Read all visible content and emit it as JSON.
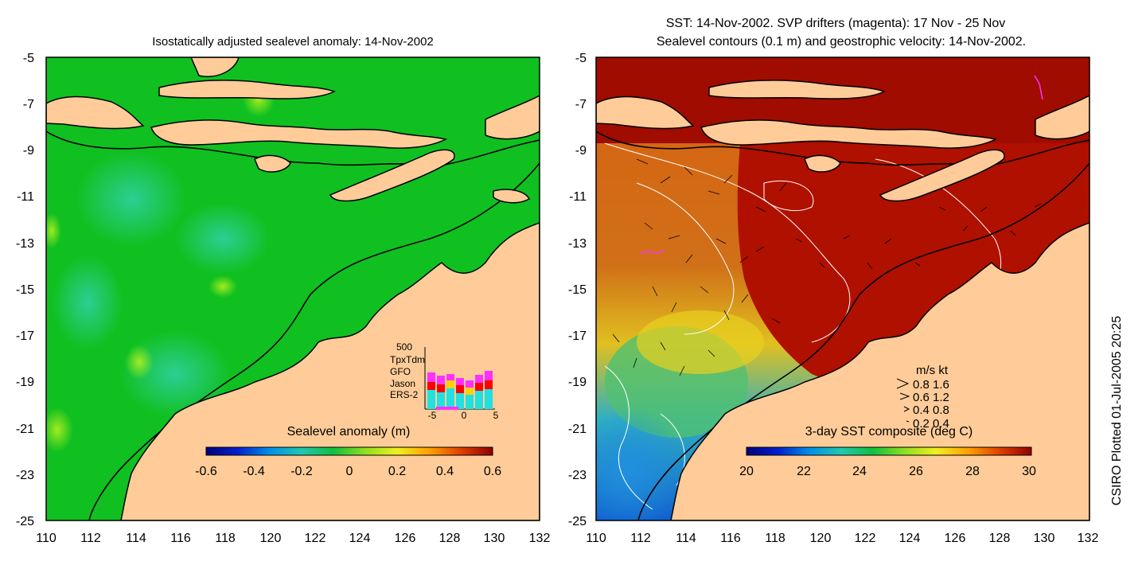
{
  "left_panel": {
    "title": "Isostatically adjusted sealevel anomaly: 14-Nov-2002",
    "colorbar_label": "Sealevel anomaly (m)",
    "colorbar_ticks": [
      "-0.6",
      "-0.4",
      "-0.2",
      "0",
      "0.2",
      "0.4",
      "0.6"
    ],
    "colorbar_colors": [
      "#00007a",
      "#0020d0",
      "#0090e8",
      "#20c8b0",
      "#10c040",
      "#90e020",
      "#f0f020",
      "#ffa000",
      "#e04000",
      "#900000"
    ],
    "inset": {
      "max_label": "500",
      "legend": [
        {
          "name": "TpxTdm",
          "color": "#ff30ff"
        },
        {
          "name": "GFO",
          "color": "#ff0000"
        },
        {
          "name": "Jason",
          "color": "#ffd000"
        },
        {
          "name": "ERS-2",
          "color": "#20e0e0"
        }
      ],
      "xticks": [
        "-5",
        "0",
        "5"
      ]
    }
  },
  "right_panel": {
    "title_line1": "SST: 14-Nov-2002. SVP drifters (magenta): 17 Nov - 25 Nov",
    "title_line2": "Sealevel contours (0.1 m) and geostrophic velocity: 14-Nov-2002.",
    "colorbar_label": "3-day SST composite (deg C)",
    "colorbar_ticks": [
      "20",
      "22",
      "24",
      "26",
      "28",
      "30"
    ],
    "colorbar_colors": [
      "#00007a",
      "#0020d0",
      "#0090e8",
      "#20c8b0",
      "#10c040",
      "#90e020",
      "#f0f020",
      "#ffa000",
      "#e04000",
      "#900000"
    ],
    "velocity_key": {
      "header": "m/s  kt",
      "rows": [
        "0.8  1.6",
        "0.6  1.2",
        "0.4  0.8",
        "0.2  0.4"
      ]
    }
  },
  "axes": {
    "x_ticks": [
      "110",
      "112",
      "114",
      "116",
      "118",
      "120",
      "122",
      "124",
      "126",
      "128",
      "130",
      "132"
    ],
    "y_ticks": [
      "-5",
      "-7",
      "-9",
      "-11",
      "-13",
      "-15",
      "-17",
      "-19",
      "-21",
      "-23",
      "-25"
    ]
  },
  "credit": "CSIRO Plotted 01-Jul-2005 20:25",
  "colors": {
    "land": "#ffcc99",
    "sea_green": "#10c020",
    "sst_red": "#b01000",
    "sst_orange": "#d86010"
  }
}
